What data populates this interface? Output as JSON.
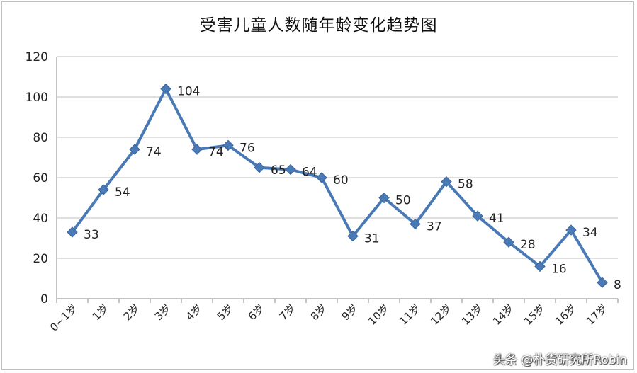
{
  "chart_data": {
    "type": "line",
    "title": "受害儿童人数随年龄变化趋势图",
    "xlabel": "",
    "ylabel": "",
    "categories": [
      "0~1岁",
      "1岁",
      "2岁",
      "3岁",
      "4岁",
      "5岁",
      "6岁",
      "7岁",
      "8岁",
      "9岁",
      "10岁",
      "11岁",
      "12岁",
      "13岁",
      "14岁",
      "15岁",
      "16岁",
      "17岁"
    ],
    "values": [
      33,
      54,
      74,
      104,
      74,
      76,
      65,
      64,
      60,
      31,
      50,
      37,
      58,
      41,
      28,
      16,
      34,
      8
    ],
    "ylim": [
      0,
      120
    ],
    "yticks": [
      0,
      20,
      40,
      60,
      80,
      100,
      120
    ],
    "grid": true,
    "legend": "none",
    "marker": "diamond",
    "line_color": "#4a7ab5",
    "marker_color": "#4a7ab5"
  },
  "watermark": "头条 @朴货研究所Robin"
}
